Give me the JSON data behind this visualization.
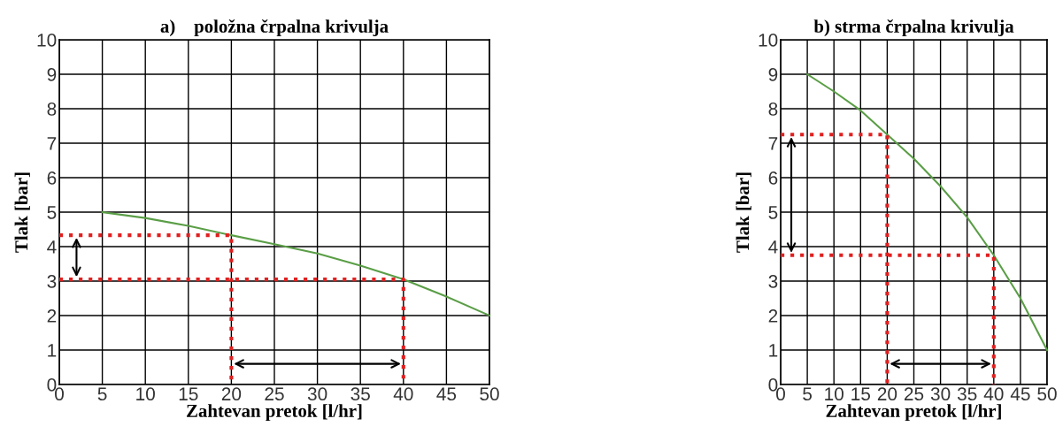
{
  "chart_data": [
    {
      "type": "line",
      "title": "a)    položna črpalna krivulja",
      "xlabel": "Zahtevan pretok [l/hr]",
      "ylabel": "Tlak [bar]",
      "xlim": [
        0,
        50
      ],
      "xticks": [
        0,
        5,
        10,
        15,
        20,
        25,
        30,
        35,
        40,
        45,
        50
      ],
      "ylim": [
        0,
        10
      ],
      "yticks": [
        0,
        1,
        2,
        3,
        4,
        5,
        6,
        7,
        8,
        9,
        10
      ],
      "grid": true,
      "legend": false,
      "series": [
        {
          "color": "#5a9e46",
          "x": [
            5,
            10,
            15,
            20,
            25,
            30,
            35,
            40,
            45,
            50
          ],
          "values": [
            5.0,
            4.83,
            4.6,
            4.33,
            4.07,
            3.8,
            3.45,
            3.05,
            2.55,
            2.0
          ],
          "line_style": "solid"
        },
        {
          "color": "#e02020",
          "x": [
            0,
            20,
            20
          ],
          "values": [
            4.33,
            4.33,
            0
          ],
          "line_style": "dotted"
        },
        {
          "color": "#e02020",
          "x": [
            0,
            40,
            40
          ],
          "values": [
            3.05,
            3.05,
            0
          ],
          "line_style": "dotted"
        }
      ]
    },
    {
      "type": "line",
      "title": "b) strma črpalna krivulja",
      "xlabel": "Zahtevan pretok [l/hr]",
      "ylabel": "Tlak [bar]",
      "xlim": [
        0,
        50
      ],
      "xticks": [
        0,
        5,
        10,
        15,
        20,
        25,
        30,
        35,
        40,
        45,
        50
      ],
      "ylim": [
        0,
        10
      ],
      "yticks": [
        0,
        1,
        2,
        3,
        4,
        5,
        6,
        7,
        8,
        9,
        10
      ],
      "grid": true,
      "legend": false,
      "series": [
        {
          "color": "#5a9e46",
          "x": [
            5,
            10,
            15,
            20,
            25,
            30,
            35,
            40,
            45,
            50
          ],
          "values": [
            9.0,
            8.5,
            7.95,
            7.25,
            6.55,
            5.75,
            4.85,
            3.75,
            2.5,
            1.0
          ],
          "line_style": "solid"
        },
        {
          "color": "#e02020",
          "x": [
            0,
            20,
            20
          ],
          "values": [
            7.25,
            7.25,
            0
          ],
          "line_style": "dotted"
        },
        {
          "color": "#e02020",
          "x": [
            0,
            40,
            40
          ],
          "values": [
            3.75,
            3.75,
            0
          ],
          "line_style": "dotted"
        }
      ]
    }
  ]
}
